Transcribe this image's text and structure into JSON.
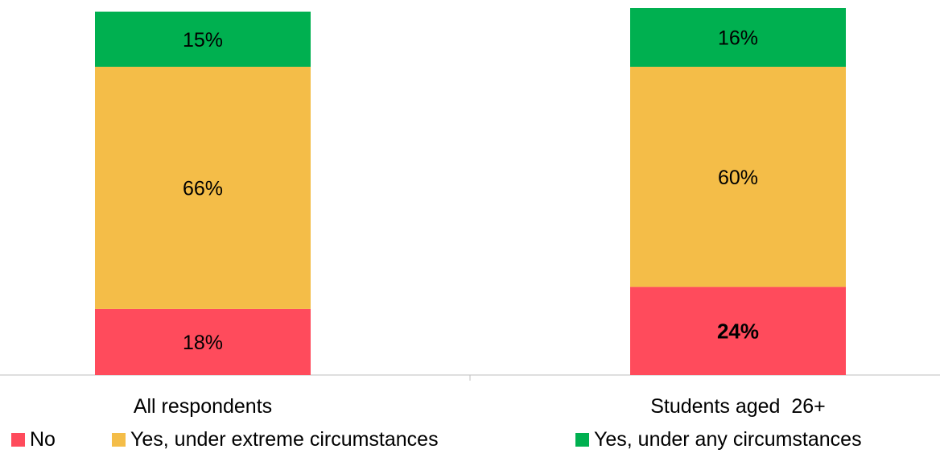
{
  "chart_data": {
    "type": "bar",
    "stacked": true,
    "categories": [
      "All respondents",
      "Students aged  26+"
    ],
    "series": [
      {
        "name": "No",
        "values": [
          18,
          24
        ],
        "labels": [
          "18%",
          "24%"
        ],
        "color": "#ff4b5c"
      },
      {
        "name": "Yes, under extreme circumstances",
        "values": [
          66,
          60
        ],
        "labels": [
          "66%",
          "60%"
        ],
        "color": "#f4bd48"
      },
      {
        "name": "Yes, under any circumstances",
        "values": [
          15,
          16
        ],
        "labels": [
          "15%",
          "16%"
        ],
        "color": "#00b050"
      }
    ],
    "ylim": [
      0,
      100
    ],
    "grid": false,
    "legend_position": "bottom",
    "emphasized_label": {
      "series": 0,
      "category": 1
    }
  }
}
